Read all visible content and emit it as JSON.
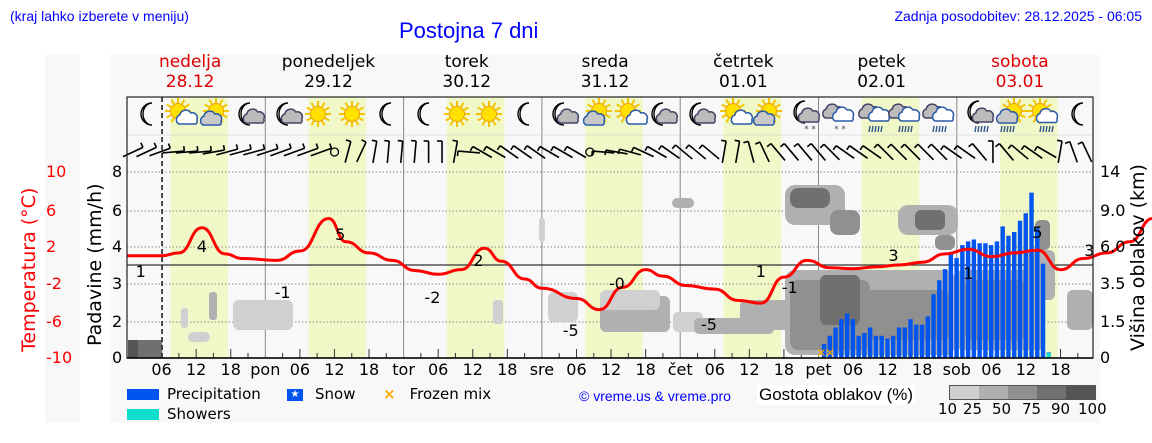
{
  "header": {
    "location_hint": "(kraj lahko izberete v meniju)",
    "title": "Postojna 7 dni",
    "last_update": "Zadnja posodobitev: 28.12.2025 - 06:05"
  },
  "days": [
    {
      "name": "nedelja",
      "date": "28.12",
      "weekend": true
    },
    {
      "name": "ponedeljek",
      "date": "29.12",
      "weekend": false
    },
    {
      "name": "torek",
      "date": "30.12",
      "weekend": false
    },
    {
      "name": "sreda",
      "date": "31.12",
      "weekend": false
    },
    {
      "name": "četrtek",
      "date": "01.01",
      "weekend": false
    },
    {
      "name": "petek",
      "date": "02.01",
      "weekend": false
    },
    {
      "name": "sobota",
      "date": "03.01",
      "weekend": true
    }
  ],
  "axes": {
    "temp_label": "Temperatura (°C)",
    "temp_ticks": [
      "10",
      "6",
      "2",
      "-2",
      "-6",
      "-10"
    ],
    "precip_label": "Padavine (mm/h)",
    "precip_ticks": [
      "8",
      "6",
      "4",
      "3",
      "2",
      "0"
    ],
    "cloud_label": "Višina oblakov (km)",
    "cloud_ticks": [
      "14",
      "9.0",
      "6.0",
      "3.5",
      "1.5",
      "0"
    ],
    "x_ticks": [
      "06",
      "12",
      "18",
      "pon",
      "06",
      "12",
      "18",
      "tor",
      "06",
      "12",
      "18",
      "sre",
      "06",
      "12",
      "18",
      "čet",
      "06",
      "12",
      "18",
      "pet",
      "06",
      "12",
      "18",
      "sob",
      "06",
      "12",
      "18"
    ]
  },
  "legend": {
    "precipitation": "Precipitation",
    "snow": "Snow",
    "frozen_mix": "Frozen mix",
    "showers": "Showers",
    "copyright": "© vreme.us & vreme.pro",
    "cloud_density_label": "Gostota oblakov (%)",
    "cloud_density_ticks": [
      "10",
      "25",
      "50",
      "75",
      "90",
      "100"
    ]
  },
  "colors": {
    "title_blue": "#0000ff",
    "weekend_red": "#dd0000",
    "temp_line": "#ff0000",
    "precip_bar": "#0055ee",
    "showers": "#11ddcc",
    "frozen_mix": "#ffaa00",
    "daylight": "#f0f8c8",
    "cloud_shades": [
      "#d0d0d0",
      "#b0b0b0",
      "#909090",
      "#707070",
      "#555555"
    ]
  },
  "chart_data": {
    "type": "line",
    "title": "Postojna 7 dni",
    "xlabel": "",
    "ylabel": "Temperatura (°C)",
    "ylim": [
      -10,
      10
    ],
    "series": [
      {
        "name": "Temperatura (°C)",
        "x_hours": [
          0,
          6,
          9,
          13,
          17,
          20,
          26,
          30,
          35,
          38,
          42,
          46,
          50,
          54,
          58,
          62,
          65,
          69,
          72,
          78,
          82,
          86,
          90,
          93,
          97,
          102,
          106,
          110,
          114,
          118,
          122,
          126,
          130,
          134,
          138,
          142,
          146,
          150,
          154,
          158,
          162,
          166,
          170,
          174,
          178,
          182,
          186,
          190,
          196
        ],
        "values": [
          1,
          1,
          1.3,
          4,
          1.2,
          0.7,
          0.5,
          1.5,
          5,
          2.5,
          1.3,
          0.5,
          -0.6,
          -1,
          -0.5,
          1.8,
          0.4,
          -1.5,
          -2.5,
          -3.6,
          -4.8,
          -2.4,
          -0.5,
          -1.2,
          -2.2,
          -2.6,
          -3.8,
          -4.1,
          -1.3,
          0.5,
          -0.3,
          -0.4,
          -0.2,
          0.0,
          0.3,
          1.2,
          1.7,
          0.9,
          1.3,
          1.6,
          -0.5,
          0.7,
          1.3,
          2.5,
          5.0,
          4.2,
          3.5,
          3.1,
          2.5
        ],
        "labels": [
          {
            "hour": 1,
            "text": "1"
          },
          {
            "hour": 13,
            "text": "4"
          },
          {
            "hour": 27,
            "text": "-1"
          },
          {
            "hour": 37,
            "text": "5"
          },
          {
            "hour": 53,
            "text": "-2"
          },
          {
            "hour": 61,
            "text": "2"
          },
          {
            "hour": 77,
            "text": "-5"
          },
          {
            "hour": 85,
            "text": "-0"
          },
          {
            "hour": 101,
            "text": "-5"
          },
          {
            "hour": 110,
            "text": "1"
          },
          {
            "hour": 115,
            "text": "-1"
          },
          {
            "hour": 133,
            "text": "3"
          },
          {
            "hour": 146,
            "text": "1"
          },
          {
            "hour": 158,
            "text": "5"
          },
          {
            "hour": 167,
            "text": "3"
          }
        ]
      },
      {
        "name": "Precipitation (mm/h)",
        "type": "bar",
        "x_hours": [
          121,
          122,
          123,
          124,
          125,
          126,
          127,
          128,
          129,
          130,
          131,
          132,
          133,
          134,
          135,
          136,
          137,
          138,
          139,
          140,
          141,
          142,
          143,
          144,
          145,
          146,
          147,
          148,
          149,
          150,
          151,
          152,
          153,
          154,
          155,
          156,
          157,
          158,
          159,
          160
        ],
        "values": [
          0.5,
          0.8,
          1.1,
          1.4,
          1.6,
          1.4,
          0.8,
          0.9,
          1.1,
          0.8,
          0.8,
          0.7,
          0.8,
          1.1,
          1.1,
          1.4,
          1.2,
          1.2,
          1.5,
          2.3,
          2.8,
          3.2,
          3.8,
          3.6,
          4.1,
          4.3,
          4.4,
          4.2,
          4.2,
          4.1,
          4.3,
          5.1,
          4.6,
          4.8,
          5.4,
          5.8,
          6.9,
          5.0,
          3.4,
          0.2
        ]
      }
    ],
    "right_axis": {
      "label": "Višina oblakov (km)",
      "ticks": [
        0,
        1.5,
        3.5,
        6.0,
        9.0,
        14
      ]
    },
    "left_axis_secondary": {
      "label": "Padavine (mm/h)",
      "ticks": [
        0,
        2,
        3,
        4,
        6,
        8
      ]
    },
    "now_marker": "28.12.2025 06:05",
    "legend_position": "bottom",
    "grid": true
  }
}
